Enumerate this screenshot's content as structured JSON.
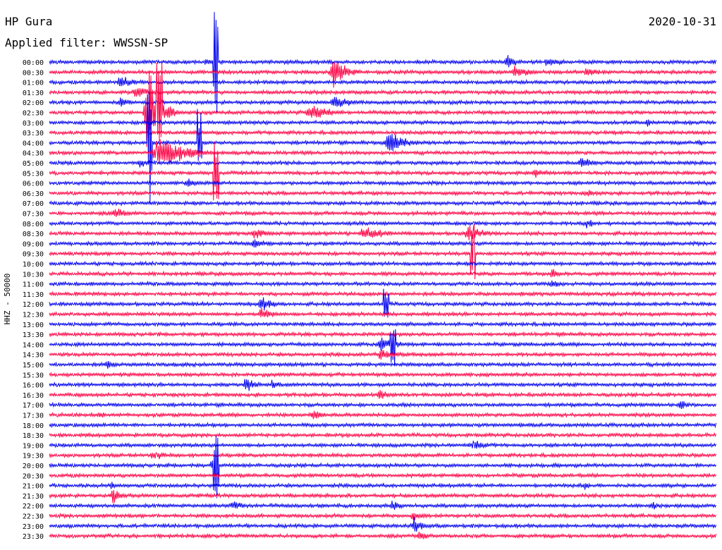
{
  "station": "HP Gura",
  "filter_text": "Applied filter: WWSSN-SP",
  "date": "2020-10-31",
  "channel_label": "HHZ - 50000",
  "colors": {
    "trace_a": "#0000ee",
    "trace_b": "#ff0044",
    "background": "#ffffff",
    "text": "#000000"
  },
  "chart_data": {
    "type": "line",
    "title": "HP Gura",
    "subtitle": "Applied filter: WWSSN-SP",
    "date": "2020-10-31",
    "ylabel": "HHZ - 50000",
    "grid": false,
    "row_interval_minutes": 30,
    "row_labels": [
      "00:00",
      "00:30",
      "01:00",
      "01:30",
      "02:00",
      "02:30",
      "03:00",
      "03:30",
      "04:00",
      "04:30",
      "05:00",
      "05:30",
      "06:00",
      "06:30",
      "07:00",
      "07:30",
      "08:00",
      "08:30",
      "09:00",
      "09:30",
      "10:00",
      "10:30",
      "11:00",
      "11:30",
      "12:00",
      "12:30",
      "13:00",
      "13:30",
      "14:00",
      "14:30",
      "15:00",
      "15:30",
      "16:00",
      "16:30",
      "17:00",
      "17:30",
      "18:00",
      "18:30",
      "19:00",
      "19:30",
      "20:00",
      "20:30",
      "21:00",
      "21:30",
      "22:00",
      "22:30",
      "23:00",
      "23:30"
    ],
    "row_colors": [
      "trace_a",
      "trace_b"
    ],
    "bursts": [
      {
        "row": 0,
        "at": 0.23,
        "len": 0.03,
        "amp": 10
      },
      {
        "row": 0,
        "at": 0.68,
        "len": 0.05,
        "amp": 12
      },
      {
        "row": 0,
        "at": 0.74,
        "len": 0.06,
        "amp": 10
      },
      {
        "row": 1,
        "at": 0.42,
        "len": 0.05,
        "amp": 30
      },
      {
        "row": 1,
        "at": 0.69,
        "len": 0.06,
        "amp": 14
      },
      {
        "row": 1,
        "at": 0.8,
        "len": 0.05,
        "amp": 12
      },
      {
        "row": 2,
        "at": 0.1,
        "len": 0.06,
        "amp": 12
      },
      {
        "row": 3,
        "at": 0.12,
        "len": 0.08,
        "amp": 10
      },
      {
        "row": 4,
        "at": 0.1,
        "len": 0.05,
        "amp": 10
      },
      {
        "row": 4,
        "at": 0.42,
        "len": 0.06,
        "amp": 14
      },
      {
        "row": 5,
        "at": 0.38,
        "len": 0.1,
        "amp": 14
      },
      {
        "row": 5,
        "at": 0.14,
        "len": 0.06,
        "amp": 50
      },
      {
        "row": 6,
        "at": 0.89,
        "len": 0.04,
        "amp": 8
      },
      {
        "row": 8,
        "at": 0.5,
        "len": 0.07,
        "amp": 22
      },
      {
        "row": 8,
        "at": 0.97,
        "len": 0.03,
        "amp": 8
      },
      {
        "row": 9,
        "at": 0.15,
        "len": 0.12,
        "amp": 28
      },
      {
        "row": 10,
        "at": 0.13,
        "len": 0.05,
        "amp": 8
      },
      {
        "row": 10,
        "at": 0.79,
        "len": 0.06,
        "amp": 10
      },
      {
        "row": 11,
        "at": 0.72,
        "len": 0.07,
        "amp": 8
      },
      {
        "row": 12,
        "at": 0.2,
        "len": 0.06,
        "amp": 8
      },
      {
        "row": 13,
        "at": 0.8,
        "len": 0.04,
        "amp": 8
      },
      {
        "row": 14,
        "at": 0.97,
        "len": 0.03,
        "amp": 8
      },
      {
        "row": 15,
        "at": 0.09,
        "len": 0.07,
        "amp": 10
      },
      {
        "row": 16,
        "at": 0.8,
        "len": 0.05,
        "amp": 8
      },
      {
        "row": 17,
        "at": 0.3,
        "len": 0.06,
        "amp": 10
      },
      {
        "row": 17,
        "at": 0.46,
        "len": 0.1,
        "amp": 12
      },
      {
        "row": 17,
        "at": 0.62,
        "len": 0.07,
        "amp": 14
      },
      {
        "row": 18,
        "at": 0.3,
        "len": 0.06,
        "amp": 10
      },
      {
        "row": 21,
        "at": 0.75,
        "len": 0.03,
        "amp": 10
      },
      {
        "row": 22,
        "at": 0.75,
        "len": 0.03,
        "amp": 10
      },
      {
        "row": 24,
        "at": 0.31,
        "len": 0.06,
        "amp": 14
      },
      {
        "row": 25,
        "at": 0.31,
        "len": 0.06,
        "amp": 12
      },
      {
        "row": 28,
        "at": 0.49,
        "len": 0.06,
        "amp": 16
      },
      {
        "row": 29,
        "at": 0.49,
        "len": 0.06,
        "amp": 14
      },
      {
        "row": 30,
        "at": 0.08,
        "len": 0.05,
        "amp": 8
      },
      {
        "row": 32,
        "at": 0.29,
        "len": 0.04,
        "amp": 14
      },
      {
        "row": 32,
        "at": 0.33,
        "len": 0.03,
        "amp": 10
      },
      {
        "row": 33,
        "at": 0.49,
        "len": 0.04,
        "amp": 10
      },
      {
        "row": 34,
        "at": 0.94,
        "len": 0.04,
        "amp": 10
      },
      {
        "row": 35,
        "at": 0.39,
        "len": 0.05,
        "amp": 12
      },
      {
        "row": 35,
        "at": 0.07,
        "len": 0.03,
        "amp": 8
      },
      {
        "row": 38,
        "at": 0.63,
        "len": 0.05,
        "amp": 10
      },
      {
        "row": 39,
        "at": 0.15,
        "len": 0.05,
        "amp": 10
      },
      {
        "row": 40,
        "at": 0.24,
        "len": 0.03,
        "amp": 10
      },
      {
        "row": 42,
        "at": 0.09,
        "len": 0.03,
        "amp": 8
      },
      {
        "row": 42,
        "at": 0.8,
        "len": 0.02,
        "amp": 10
      },
      {
        "row": 43,
        "at": 0.09,
        "len": 0.04,
        "amp": 16
      },
      {
        "row": 44,
        "at": 0.27,
        "len": 0.05,
        "amp": 10
      },
      {
        "row": 44,
        "at": 0.51,
        "len": 0.04,
        "amp": 10
      },
      {
        "row": 44,
        "at": 0.9,
        "len": 0.04,
        "amp": 8
      },
      {
        "row": 45,
        "at": 0.54,
        "len": 0.04,
        "amp": 10
      },
      {
        "row": 46,
        "at": 0.54,
        "len": 0.05,
        "amp": 14
      },
      {
        "row": 47,
        "at": 0.55,
        "len": 0.04,
        "amp": 10
      }
    ],
    "spikes": [
      {
        "row": 0,
        "at": 0.249,
        "amp": 90
      },
      {
        "row": 5,
        "at": 0.149,
        "amp": 70
      },
      {
        "row": 5,
        "at": 0.165,
        "amp": 80
      },
      {
        "row": 8,
        "at": 0.15,
        "amp": 100
      },
      {
        "row": 8,
        "at": 0.225,
        "amp": 60
      },
      {
        "row": 11,
        "at": 0.25,
        "amp": 50
      },
      {
        "row": 19,
        "at": 0.635,
        "amp": 50
      },
      {
        "row": 24,
        "at": 0.505,
        "amp": 30
      },
      {
        "row": 28,
        "at": 0.515,
        "amp": 40
      },
      {
        "row": 40,
        "at": 0.25,
        "amp": 60
      }
    ]
  }
}
